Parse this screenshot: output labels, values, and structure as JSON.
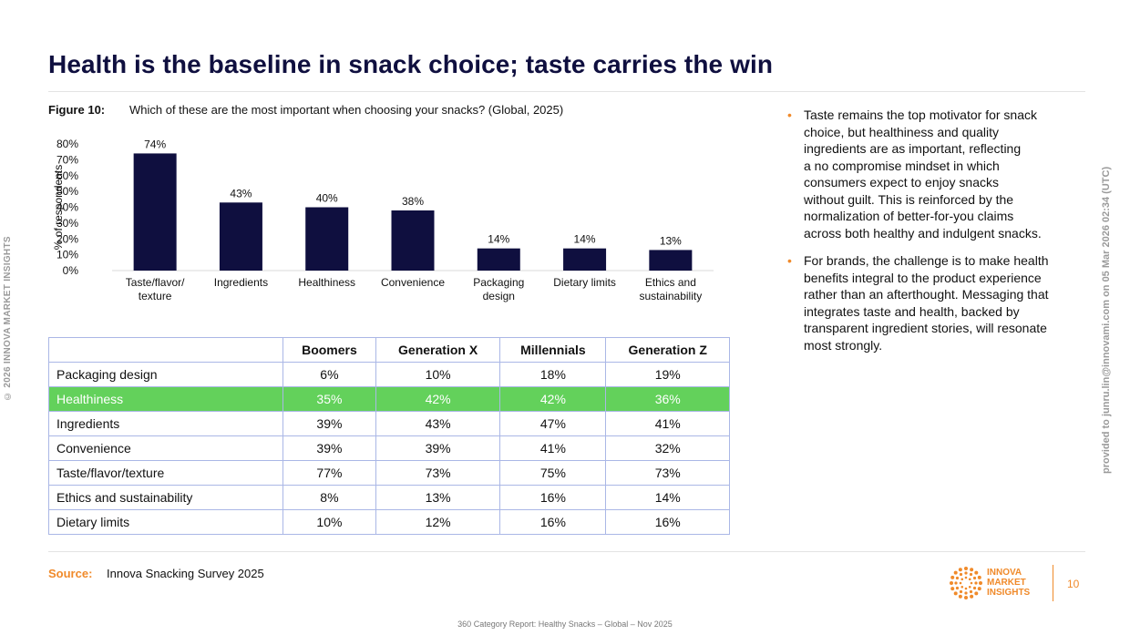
{
  "side": {
    "copyright": "© 2026 INNOVA MARKET INSIGHTS",
    "provided": "provided to junru.lin@innovami.com on 05 Mar 2026 02:34 (UTC)"
  },
  "title": "Health is the baseline in snack choice; taste carries the win",
  "figure": {
    "label": "Figure 10:",
    "question": "Which of these are the most important when choosing your snacks? (Global, 2025)"
  },
  "chart_data": {
    "type": "bar",
    "categories": [
      "Taste/flavor/ texture",
      "Ingredients",
      "Healthiness",
      "Convenience",
      "Packaging design",
      "Dietary limits",
      "Ethics and sustainability"
    ],
    "category_lines": [
      [
        "Taste/flavor/",
        "texture"
      ],
      [
        "Ingredients"
      ],
      [
        "Healthiness"
      ],
      [
        "Convenience"
      ],
      [
        "Packaging",
        "design"
      ],
      [
        "Dietary limits"
      ],
      [
        "Ethics and",
        "sustainability"
      ]
    ],
    "values": [
      74,
      43,
      40,
      38,
      14,
      14,
      13
    ],
    "value_labels": [
      "74%",
      "43%",
      "40%",
      "38%",
      "14%",
      "14%",
      "13%"
    ],
    "yticks": [
      0,
      10,
      20,
      30,
      40,
      50,
      60,
      70,
      80
    ],
    "ytick_labels": [
      "0%",
      "10%",
      "20%",
      "30%",
      "40%",
      "50%",
      "60%",
      "70%",
      "80%"
    ],
    "ylim": [
      0,
      80
    ],
    "ylabel": "% of respondents",
    "xlabel": "",
    "bar_color": "#0f0f3f"
  },
  "table": {
    "headers": [
      "",
      "Boomers",
      "Generation X",
      "Millennials",
      "Generation Z"
    ],
    "rows": [
      {
        "name": "Packaging design",
        "values": [
          "6%",
          "10%",
          "18%",
          "19%"
        ]
      },
      {
        "name": "Healthiness",
        "values": [
          "35%",
          "42%",
          "42%",
          "36%"
        ]
      },
      {
        "name": "Ingredients",
        "values": [
          "39%",
          "43%",
          "47%",
          "41%"
        ]
      },
      {
        "name": "Convenience",
        "values": [
          "39%",
          "39%",
          "41%",
          "32%"
        ]
      },
      {
        "name": "Taste/flavor/texture",
        "values": [
          "77%",
          "73%",
          "75%",
          "73%"
        ]
      },
      {
        "name": "Ethics and sustainability",
        "values": [
          "8%",
          "13%",
          "16%",
          "14%"
        ]
      },
      {
        "name": "Dietary limits",
        "values": [
          "10%",
          "12%",
          "16%",
          "16%"
        ]
      }
    ],
    "highlight_color": "#63d15b"
  },
  "bullets": [
    {
      "lines": [
        "Taste remains the top motivator for snack",
        "choice, but healthiness and quality",
        "ingredients are as important, reflecting",
        "a no compromise mindset in which",
        "consumers expect to enjoy snacks",
        "without guilt. This is reinforced by the",
        "normalization of better-for-you claims",
        "across both healthy and indulgent snacks."
      ]
    },
    {
      "lines": [
        "For brands, the challenge is to make health",
        "benefits integral to the product experience",
        "rather than an afterthought. Messaging that",
        "integrates taste and health, backed by",
        "transparent ingredient stories, will resonate",
        "most strongly."
      ]
    }
  ],
  "source": {
    "label": "Source:",
    "text": "Innova Snacking Survey 2025"
  },
  "footer": "360 Category Report: Healthy Snacks – Global – Nov 2025",
  "logo": {
    "lines": [
      "INNOVA",
      "MARKET",
      "INSIGHTS"
    ],
    "color": "#f08a2a",
    "icon": "innova-dots-icon"
  },
  "page_number": "10"
}
